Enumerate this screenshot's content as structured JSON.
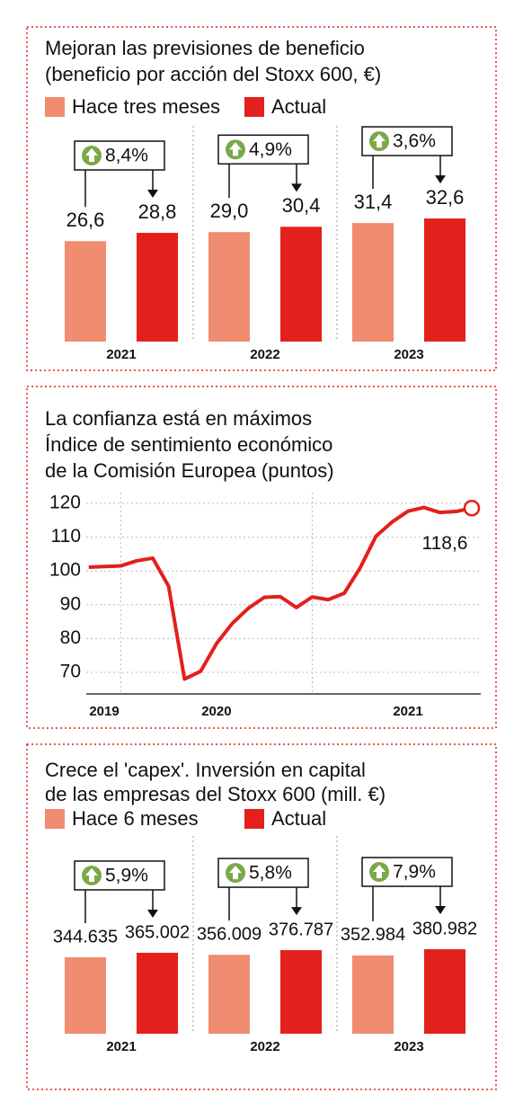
{
  "chart_data": [
    {
      "type": "bar",
      "title": [
        "Mejoran las previsiones de beneficio",
        "(beneficio por acción del Stoxx 600, €)"
      ],
      "categories": [
        "2021",
        "2022",
        "2023"
      ],
      "series": [
        {
          "name": "Hace tres meses",
          "color": "#f08c70",
          "values": [
            26.6,
            29.0,
            31.4
          ],
          "value_labels": [
            "26,6",
            "29,0",
            "31,4"
          ]
        },
        {
          "name": "Actual",
          "color": "#e3201b",
          "values": [
            28.8,
            30.4,
            32.6
          ],
          "value_labels": [
            "28,8",
            "30,4",
            "32,6"
          ]
        }
      ],
      "changes": [
        "8,4%",
        "4,9%",
        "3,6%"
      ]
    },
    {
      "type": "line",
      "title": [
        "La confianza está en máximos",
        "Índice de sentimiento económico",
        "de la Comisión Europea (puntos)"
      ],
      "color": "#e3201b",
      "x": [
        2019.833,
        2019.917,
        2020.0,
        2020.083,
        2020.167,
        2020.25,
        2020.333,
        2020.417,
        2020.5,
        2020.583,
        2020.667,
        2020.75,
        2020.833,
        2020.917,
        2021.0,
        2021.083,
        2021.167,
        2021.25,
        2021.333,
        2021.417,
        2021.5,
        2021.583,
        2021.667,
        2021.75,
        2021.833
      ],
      "values": [
        101.1,
        101.3,
        101.5,
        103,
        103.8,
        95.5,
        68,
        70.3,
        78.5,
        84.5,
        89,
        92.2,
        92.4,
        89.2,
        92.3,
        91.5,
        93.4,
        100.9,
        110.3,
        114.5,
        117.7,
        118.8,
        117.3,
        117.6,
        118.6
      ],
      "end_label": "118,6",
      "xlim": [
        2019.82,
        2021.88
      ],
      "xticks": [
        2019,
        2020,
        2021
      ],
      "ylim": [
        63.6,
        123.2
      ],
      "yticks": [
        70,
        80,
        90,
        100,
        110,
        120
      ],
      "grid": true
    },
    {
      "type": "bar",
      "title": [
        "Crece el 'capex'. Inversión en capital",
        "de las empresas del Stoxx 600 (mill. €)"
      ],
      "categories": [
        "2021",
        "2022",
        "2023"
      ],
      "series": [
        {
          "name": "Hace 6 meses",
          "color": "#f08c70",
          "values": [
            344635,
            356009,
            352984
          ],
          "value_labels": [
            "344.635",
            "356.009",
            "352.984"
          ]
        },
        {
          "name": "Actual",
          "color": "#e3201b",
          "values": [
            365002,
            376787,
            380982
          ],
          "value_labels": [
            "365.002",
            "376.787",
            "380.982"
          ]
        }
      ],
      "changes": [
        "5,9%",
        "5,8%",
        "7,9%"
      ]
    }
  ]
}
